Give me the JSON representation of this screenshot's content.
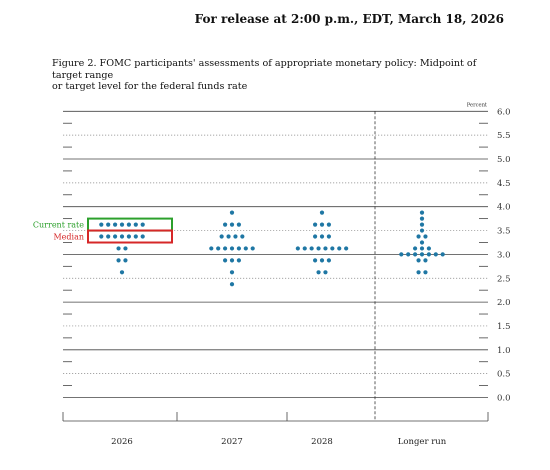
{
  "header": {
    "release": "For release at 2:00 p.m., EDT, March 18, 2026"
  },
  "figure": {
    "title_line1": "Figure 2. FOMC participants' assessments of appropriate monetary policy: Midpoint of target range",
    "title_line2": "or target level for the federal funds rate"
  },
  "annotations": {
    "current_rate_label": "Current rate",
    "median_label": "Median",
    "current_rate_color": "#2ca02c",
    "median_color": "#d62728"
  },
  "chart_data": {
    "type": "scatter",
    "title": "Figure 2. FOMC participants' assessments of appropriate monetary policy: Midpoint of target range or target level for the federal funds rate",
    "ylabel": "Percent",
    "ylim": [
      -0.25,
      6.0
    ],
    "yticks": [
      "0.0",
      "0.5",
      "1.0",
      "1.5",
      "2.0",
      "2.5",
      "3.0",
      "3.5",
      "4.0",
      "4.5",
      "5.0",
      "5.5",
      "6.0"
    ],
    "categories": [
      "2026",
      "2027",
      "2028",
      "Longer run"
    ],
    "dot_color": "#1f77a4",
    "grid": "horizontal",
    "series": [
      {
        "category": "2026",
        "levels": [
          {
            "y": 3.625,
            "count": 7
          },
          {
            "y": 3.375,
            "count": 7
          },
          {
            "y": 3.125,
            "count": 2
          },
          {
            "y": 2.875,
            "count": 2
          },
          {
            "y": 2.625,
            "count": 1
          }
        ]
      },
      {
        "category": "2027",
        "levels": [
          {
            "y": 3.875,
            "count": 1
          },
          {
            "y": 3.625,
            "count": 3
          },
          {
            "y": 3.375,
            "count": 4
          },
          {
            "y": 3.125,
            "count": 7
          },
          {
            "y": 2.875,
            "count": 3
          },
          {
            "y": 2.625,
            "count": 1
          },
          {
            "y": 2.375,
            "count": 1
          }
        ]
      },
      {
        "category": "2028",
        "levels": [
          {
            "y": 3.875,
            "count": 1
          },
          {
            "y": 3.625,
            "count": 3
          },
          {
            "y": 3.375,
            "count": 3
          },
          {
            "y": 3.125,
            "count": 8
          },
          {
            "y": 2.875,
            "count": 3
          },
          {
            "y": 2.625,
            "count": 2
          }
        ]
      },
      {
        "category": "Longer run",
        "levels": [
          {
            "y": 3.875,
            "count": 1
          },
          {
            "y": 3.75,
            "count": 1
          },
          {
            "y": 3.625,
            "count": 1
          },
          {
            "y": 3.5,
            "count": 1
          },
          {
            "y": 3.375,
            "count": 2
          },
          {
            "y": 3.25,
            "count": 1
          },
          {
            "y": 3.125,
            "count": 3
          },
          {
            "y": 3.0,
            "count": 7
          },
          {
            "y": 2.875,
            "count": 2
          },
          {
            "y": 2.625,
            "count": 2
          }
        ]
      }
    ]
  }
}
